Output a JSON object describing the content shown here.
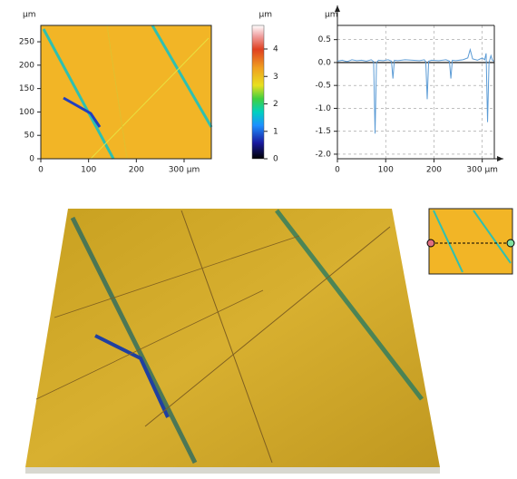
{
  "chart_data": [
    {
      "type": "heatmap",
      "y_label": "µm",
      "xlim": [
        0,
        357
      ],
      "xticks": [
        0,
        100,
        200,
        {
          "value": 300,
          "label": "300 µm"
        }
      ],
      "ylim": [
        0,
        285
      ],
      "yticks": [
        0,
        50,
        100,
        150,
        200,
        250
      ]
    },
    {
      "type": "colorbar",
      "label": "µm",
      "ylim": [
        0,
        4.86
      ],
      "yticks": [
        0,
        1,
        2,
        3,
        4
      ]
    },
    {
      "type": "line",
      "y_label": "µm",
      "grid": true,
      "xlim": [
        0,
        325
      ],
      "xticks": [
        0,
        100,
        200,
        {
          "value": 300,
          "label": "300 µm"
        }
      ],
      "ylim": [
        -2.1,
        0.81
      ],
      "yticks": [
        {
          "value": -2,
          "label": "-2.0"
        },
        -1.5,
        {
          "value": -1,
          "label": "-1.0"
        },
        -0.5,
        {
          "value": 0,
          "label": "0.0"
        },
        0.5
      ],
      "series": [
        {
          "color": "#5b9bd5",
          "x": [
            0,
            10,
            20,
            30,
            40,
            50,
            60,
            70,
            75,
            78,
            81,
            85,
            95,
            105,
            112,
            115,
            118,
            125,
            140,
            155,
            170,
            180,
            183,
            186,
            189,
            195,
            210,
            225,
            232,
            235,
            238,
            245,
            260,
            270,
            275,
            280,
            290,
            300,
            305,
            308,
            311,
            314,
            318,
            321,
            324
          ],
          "values": [
            0.03,
            0.05,
            0.02,
            0.06,
            0.04,
            0.05,
            0.03,
            0.06,
            0.02,
            -1.55,
            0.0,
            0.05,
            0.04,
            0.06,
            0.03,
            -0.35,
            0.05,
            0.04,
            0.06,
            0.05,
            0.04,
            0.06,
            0.02,
            -0.8,
            0.03,
            0.05,
            0.04,
            0.06,
            0.03,
            -0.35,
            0.05,
            0.04,
            0.06,
            0.1,
            0.28,
            0.08,
            0.05,
            0.1,
            0.06,
            0.2,
            -1.3,
            0.0,
            0.15,
            0.05,
            0.03
          ]
        }
      ]
    }
  ]
}
